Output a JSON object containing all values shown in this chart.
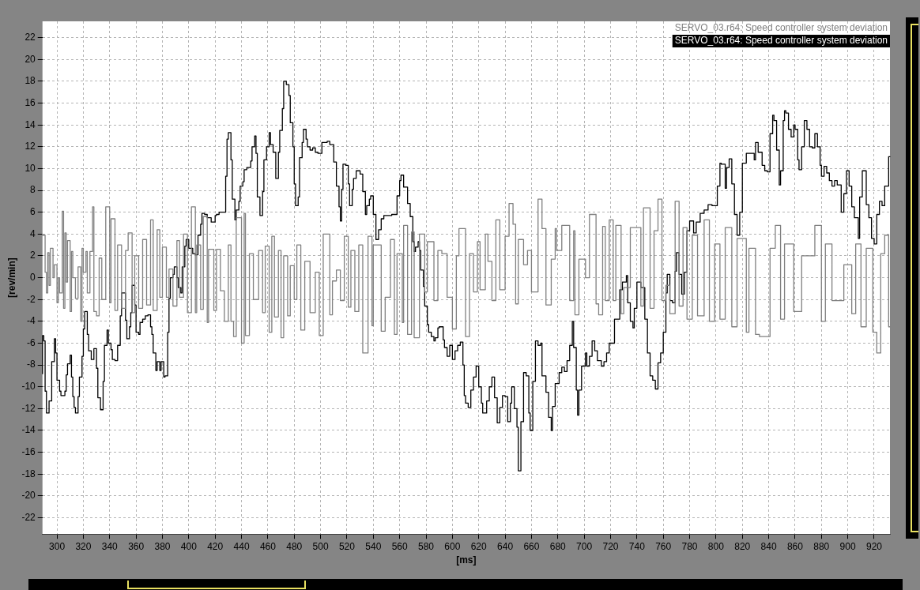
{
  "chart_data": {
    "type": "step",
    "xlabel": "[ms]",
    "ylabel": "[rev/min]",
    "xlim": [
      289,
      932
    ],
    "ylim": [
      -23.5,
      23.5
    ],
    "xticks": [
      300,
      320,
      340,
      360,
      380,
      400,
      420,
      440,
      460,
      480,
      500,
      520,
      540,
      560,
      580,
      600,
      620,
      640,
      660,
      680,
      700,
      720,
      740,
      760,
      780,
      800,
      820,
      840,
      860,
      880,
      900,
      920
    ],
    "yticks": [
      -22,
      -20,
      -18,
      -16,
      -14,
      -12,
      -10,
      -8,
      -6,
      -4,
      -2,
      0,
      2,
      4,
      6,
      8,
      10,
      12,
      14,
      16,
      18,
      20,
      22
    ],
    "grid": true,
    "legend": "top right",
    "marker": "none",
    "series": [
      {
        "name": "SERVO_03.r64: Speed controller system deviation",
        "color": "#808080",
        "x": [
          289,
          291,
          292,
          293,
          294,
          295,
          297,
          298,
          300,
          301,
          302,
          304,
          305,
          306,
          307,
          308,
          310,
          311,
          312,
          314,
          316,
          318,
          319,
          320,
          322,
          323,
          325,
          327,
          328,
          330,
          332,
          334,
          337,
          340,
          341,
          344,
          346,
          349,
          352,
          354,
          357,
          359,
          362,
          365,
          368,
          371,
          373,
          376,
          378,
          380,
          383,
          385,
          388,
          391,
          393,
          396,
          399,
          402,
          405,
          406,
          409,
          411,
          414,
          415,
          419,
          421,
          424,
          427,
          430,
          432,
          434,
          436,
          440,
          442,
          443,
          446,
          449,
          453,
          456,
          458,
          461,
          463,
          465,
          468,
          470,
          472,
          475,
          477,
          480,
          482,
          485,
          488,
          492,
          496,
          499,
          502,
          507,
          509,
          512,
          515,
          518,
          521,
          523,
          526,
          529,
          532,
          536,
          539,
          540,
          546,
          549,
          553,
          556,
          558,
          562,
          563,
          566,
          569,
          571,
          575,
          579,
          581,
          586,
          589,
          592,
          596,
          600,
          603,
          605,
          610,
          613,
          616,
          619,
          621,
          625,
          627,
          630,
          633,
          636,
          640,
          643,
          646,
          648,
          650,
          654,
          657,
          660,
          665,
          668,
          671,
          675,
          678,
          679,
          683,
          689,
          692,
          693,
          696,
          701,
          704,
          709,
          711,
          714,
          716,
          719,
          722,
          724,
          728,
          730,
          735,
          743,
          745,
          750,
          753,
          756,
          759,
          762,
          765,
          769,
          772,
          775,
          778,
          782,
          786,
          791,
          795,
          799,
          803,
          807,
          812,
          816,
          823,
          825,
          830,
          833,
          841,
          845,
          849,
          852,
          859,
          865,
          869,
          875,
          880,
          883,
          888,
          891,
          897,
          903,
          906,
          910,
          914,
          919,
          922,
          925,
          928,
          931,
          932
        ],
        "values": [
          4,
          3.9,
          0.5,
          -1.4,
          2.3,
          -0.7,
          2.7,
          0,
          1.2,
          -2.3,
          0,
          -1.4,
          6.1,
          -2.8,
          4.1,
          -0.4,
          3.4,
          -3.1,
          2.4,
          0,
          -1.9,
          1,
          -4,
          2.7,
          0.5,
          2.4,
          -1.4,
          2.4,
          6.5,
          -3.1,
          -3.5,
          1.8,
          -2,
          6.5,
          -2.3,
          5.4,
          -3,
          3,
          -2.8,
          2.5,
          4.1,
          -3.2,
          2,
          -2.8,
          3.5,
          -2.5,
          5.3,
          -3,
          4.4,
          -1.8,
          2.8,
          -1.8,
          0.8,
          -2.6,
          3.4,
          -1.8,
          4,
          -3.2,
          6.5,
          -3.2,
          3,
          -2.9,
          5.6,
          -4.1,
          2.6,
          -3,
          2.6,
          -1.2,
          -4,
          3,
          -4,
          -5.4,
          5.5,
          -6,
          5.9,
          -5.3,
          2.2,
          -2,
          2.5,
          -3.2,
          2.9,
          -5,
          3.8,
          -3.6,
          2.5,
          -5.5,
          2,
          -3.5,
          1.1,
          -2,
          3,
          -4.8,
          1.5,
          -3.2,
          0.5,
          -5.3,
          4,
          -3.4,
          -0.3,
          0.7,
          -2.1,
          3.8,
          -2.7,
          2.5,
          -3.1,
          3,
          -6.9,
          3.8,
          -4.4,
          3,
          -4.9,
          -1.8,
          3.5,
          -5.2,
          2.2,
          -4.1,
          4.8,
          -5.2,
          4.2,
          -5.5,
          4,
          -1.3,
          3.3,
          -2.1,
          2.5,
          2.2,
          -1.8,
          -4.7,
          2,
          4.5,
          -5.4,
          2.2,
          -1.3,
          3.3,
          -1.1,
          4,
          1.5,
          -2.1,
          5.3,
          -1.1,
          3.8,
          6.8,
          4.9,
          -2.4,
          3.5,
          1.2,
          2.5,
          -1.3,
          7.2,
          4.5,
          -2.5,
          1.7,
          4.5,
          2.5,
          4.8,
          -2.1,
          4.3,
          -3.4,
          1.7,
          0,
          5.8,
          -2.4,
          -3.4,
          4.7,
          -2.1,
          5.3,
          -2.1,
          4.8,
          -3.3,
          -0.9,
          4.6,
          -2.6,
          6.4,
          -2.8,
          4.3,
          7.2,
          -2.1,
          -0.7,
          -3.3,
          7,
          -2.6,
          4.6,
          -3.8,
          3.9,
          -3.5,
          5.3,
          -4,
          3.1,
          -3.8,
          4.6,
          -4.5,
          3.6,
          -5,
          2.7,
          -5.2,
          -5.4,
          2.7,
          4.8,
          -3.8,
          3.1,
          -3.1,
          2,
          2,
          4.8,
          -4,
          3.1,
          -2.1,
          -2.1,
          1.2,
          -3.3,
          3.1,
          -4.5,
          2.7,
          -5,
          -6.9,
          2.2,
          3.9,
          -4.5
        ]
      },
      {
        "name": "SERVO_03.r64: Speed controller system deviation",
        "color": "#000000",
        "x": [
          289,
          290,
          291,
          292,
          294,
          296,
          298,
          299,
          300,
          302,
          303,
          306,
          307,
          308,
          310,
          311,
          312,
          313,
          314,
          316,
          317,
          319,
          320,
          321,
          323,
          324,
          326,
          328,
          330,
          331,
          333,
          335,
          336,
          338,
          339,
          341,
          342,
          344,
          346,
          348,
          349,
          350,
          352,
          353,
          355,
          356,
          357,
          359,
          360,
          362,
          363,
          365,
          367,
          369,
          371,
          372,
          373,
          375,
          376,
          378,
          379,
          381,
          382,
          384,
          385,
          386,
          388,
          389,
          391,
          392,
          394,
          395,
          397,
          398,
          400,
          402,
          403,
          405,
          407,
          409,
          410,
          412,
          414,
          417,
          420,
          421,
          423,
          426,
          428,
          429,
          430,
          432,
          433,
          435,
          436,
          438,
          439,
          441,
          442,
          444,
          447,
          448,
          450,
          451,
          452,
          454,
          456,
          457,
          459,
          461,
          462,
          464,
          466,
          468,
          469,
          471,
          472,
          474,
          476,
          477,
          479,
          480,
          481,
          483,
          484,
          486,
          487,
          489,
          490,
          492,
          494,
          496,
          498,
          501,
          502,
          505,
          507,
          510,
          512,
          514,
          515,
          516,
          517,
          519,
          521,
          522,
          524,
          525,
          527,
          530,
          532,
          534,
          535,
          537,
          538,
          540,
          542,
          544,
          546,
          548,
          550,
          554,
          558,
          560,
          561,
          563,
          566,
          568,
          570,
          571,
          572,
          574,
          575,
          576,
          578,
          579,
          581,
          582,
          584,
          586,
          587,
          589,
          590,
          593,
          594,
          596,
          598,
          600,
          602,
          604,
          606,
          608,
          609,
          610,
          612,
          614,
          616,
          618,
          620,
          622,
          623,
          626,
          628,
          630,
          632,
          634,
          636,
          638,
          640,
          642,
          644,
          645,
          647,
          649,
          650,
          652,
          654,
          656,
          658,
          659,
          661,
          663,
          665,
          667,
          668,
          671,
          673,
          675,
          676,
          678,
          681,
          683,
          685,
          687,
          689,
          691,
          692,
          694,
          695,
          696,
          698,
          701,
          702,
          704,
          706,
          708,
          710,
          713,
          715,
          717,
          719,
          723,
          727,
          729,
          732,
          733,
          735,
          737,
          738,
          740,
          743,
          746,
          748,
          750,
          752,
          754,
          756,
          758,
          760,
          762,
          763,
          765,
          767,
          769,
          770,
          772,
          774,
          776,
          778,
          780,
          783,
          785,
          788,
          791,
          794,
          797,
          801,
          803,
          804,
          807,
          808,
          810,
          812,
          814,
          816,
          818,
          820,
          823,
          825,
          829,
          830,
          832,
          835,
          837,
          839,
          841,
          843,
          844,
          846,
          848,
          849,
          851,
          852,
          853,
          855,
          857,
          859,
          860,
          862,
          863,
          865,
          867,
          869,
          871,
          873,
          875,
          877,
          879,
          880,
          882,
          884,
          886,
          888,
          890,
          892,
          895,
          897,
          899,
          901,
          903,
          905,
          908,
          909,
          911,
          914,
          916,
          918,
          920,
          922,
          924,
          926,
          928,
          931,
          932
        ],
        "values": [
          -8.8,
          -5.3,
          -5.8,
          -10.4,
          -12.4,
          -11.3,
          -7.7,
          -5.6,
          -6.9,
          -9.4,
          -10.4,
          -10.8,
          -10.4,
          -8.9,
          -7.9,
          -7.1,
          -9.1,
          -10.9,
          -11.9,
          -12.4,
          -10.9,
          -9.1,
          -7.2,
          -4.7,
          -3.1,
          -5.2,
          -6.7,
          -7.5,
          -6.5,
          -8.3,
          -11,
          -12.1,
          -9.5,
          -6.2,
          -4.8,
          -6,
          -6.6,
          -7.5,
          -7.6,
          -6.2,
          -3.5,
          -1.4,
          -1.4,
          -3.9,
          -5.6,
          -4.5,
          -3.2,
          -0.7,
          -2.5,
          -5,
          -5.2,
          -4.1,
          -3.8,
          -3.5,
          -3.4,
          -4.5,
          -5.2,
          -6.9,
          -8.5,
          -7.7,
          -8.5,
          -7.7,
          -9.1,
          -9,
          -5,
          -1.9,
          0,
          0.3,
          1,
          0,
          -0.9,
          -1.4,
          1,
          2.9,
          3.5,
          2.7,
          2.7,
          2.2,
          2.1,
          3.9,
          4.9,
          5.9,
          5.8,
          5.5,
          5.1,
          5.7,
          5.8,
          6,
          6,
          9.3,
          12.7,
          13.3,
          10.8,
          7.2,
          5.3,
          6.2,
          7,
          8.4,
          8.8,
          9.9,
          10.1,
          10.7,
          12,
          13,
          11.4,
          7.4,
          5.7,
          7.9,
          10.8,
          12,
          13.3,
          12.2,
          11.5,
          9.1,
          11.5,
          13.5,
          15.5,
          18,
          17.7,
          16.7,
          14.2,
          12,
          8.6,
          6.6,
          7.4,
          11,
          12.4,
          13.6,
          12.7,
          12,
          11.7,
          11.9,
          11.5,
          11.4,
          12.4,
          12.4,
          12.5,
          12.2,
          10.6,
          8.4,
          6.5,
          5.2,
          8.1,
          10.4,
          10.3,
          8.6,
          6.6,
          8.1,
          9.1,
          9.8,
          9.5,
          7.9,
          5.8,
          6.6,
          7.2,
          7.5,
          5.8,
          3.5,
          4.4,
          5.4,
          5.7,
          5.7,
          5.8,
          7.5,
          8.9,
          9.4,
          8.3,
          6.8,
          5.6,
          3.3,
          2.4,
          2.8,
          3.3,
          2.5,
          0.7,
          -0.8,
          -2.6,
          -4.3,
          -5,
          -5.4,
          -5.8,
          -5.5,
          -4.6,
          -4.5,
          -5.7,
          -6.4,
          -7.2,
          -6.2,
          -7.5,
          -6.7,
          -6.2,
          -5.9,
          -8,
          -10.8,
          -11.5,
          -11.9,
          -10.3,
          -9.1,
          -8.1,
          -10,
          -11.5,
          -12.4,
          -11.3,
          -10,
          -9.1,
          -11,
          -13.3,
          -11.9,
          -10.8,
          -10.9,
          -13.2,
          -11.5,
          -10,
          -12,
          -13.7,
          -17.7,
          -13.2,
          -8.7,
          -9,
          -12.4,
          -14,
          -9.5,
          -5.8,
          -6.2,
          -6,
          -9,
          -10.5,
          -12.8,
          -14,
          -11.8,
          -9.7,
          -8.7,
          -8.2,
          -8.6,
          -7.6,
          -6.2,
          -4,
          -6.4,
          -10.3,
          -12.6,
          -10.3,
          -8.1,
          -6.9,
          -8.1,
          -7.2,
          -5.8,
          -6.7,
          -7.6,
          -8.1,
          -7.7,
          -6.9,
          -6,
          -3.8,
          -1.1,
          -0.4,
          0.2,
          -2.3,
          -4,
          -4.6,
          -2.8,
          -0.4,
          -0.9,
          -3.8,
          -6.9,
          -9,
          -9.4,
          -10.2,
          -7.8,
          -6.9,
          -5,
          -1.4,
          0.3,
          -2.1,
          -2.3,
          0.6,
          2.3,
          0.3,
          -1.5,
          0.5,
          4.3,
          5.2,
          4.1,
          5.1,
          5.9,
          6.2,
          6.7,
          6.6,
          8.4,
          10.5,
          10.4,
          8.2,
          10.1,
          10.9,
          8.6,
          5.8,
          3.9,
          6,
          10.5,
          11.4,
          11.4,
          10.8,
          12.4,
          11.5,
          10.3,
          9.8,
          9.7,
          13.2,
          14.9,
          14.4,
          11.7,
          8.5,
          9.8,
          14.4,
          15.3,
          15.1,
          13.6,
          12.9,
          14,
          13.6,
          10.8,
          9.9,
          12,
          14.4,
          13.6,
          12,
          11.9,
          13.2,
          12,
          10.3,
          9.3,
          10.2,
          9.6,
          8.9,
          8.4,
          8.9,
          8.5,
          6,
          7.7,
          9.8,
          8.4,
          6.5,
          5.5,
          3.6,
          7.4,
          9.8,
          6.7,
          5.5,
          3.6,
          3.1,
          5.8,
          7,
          6.6,
          8.4,
          11.1
        ]
      }
    ]
  }
}
